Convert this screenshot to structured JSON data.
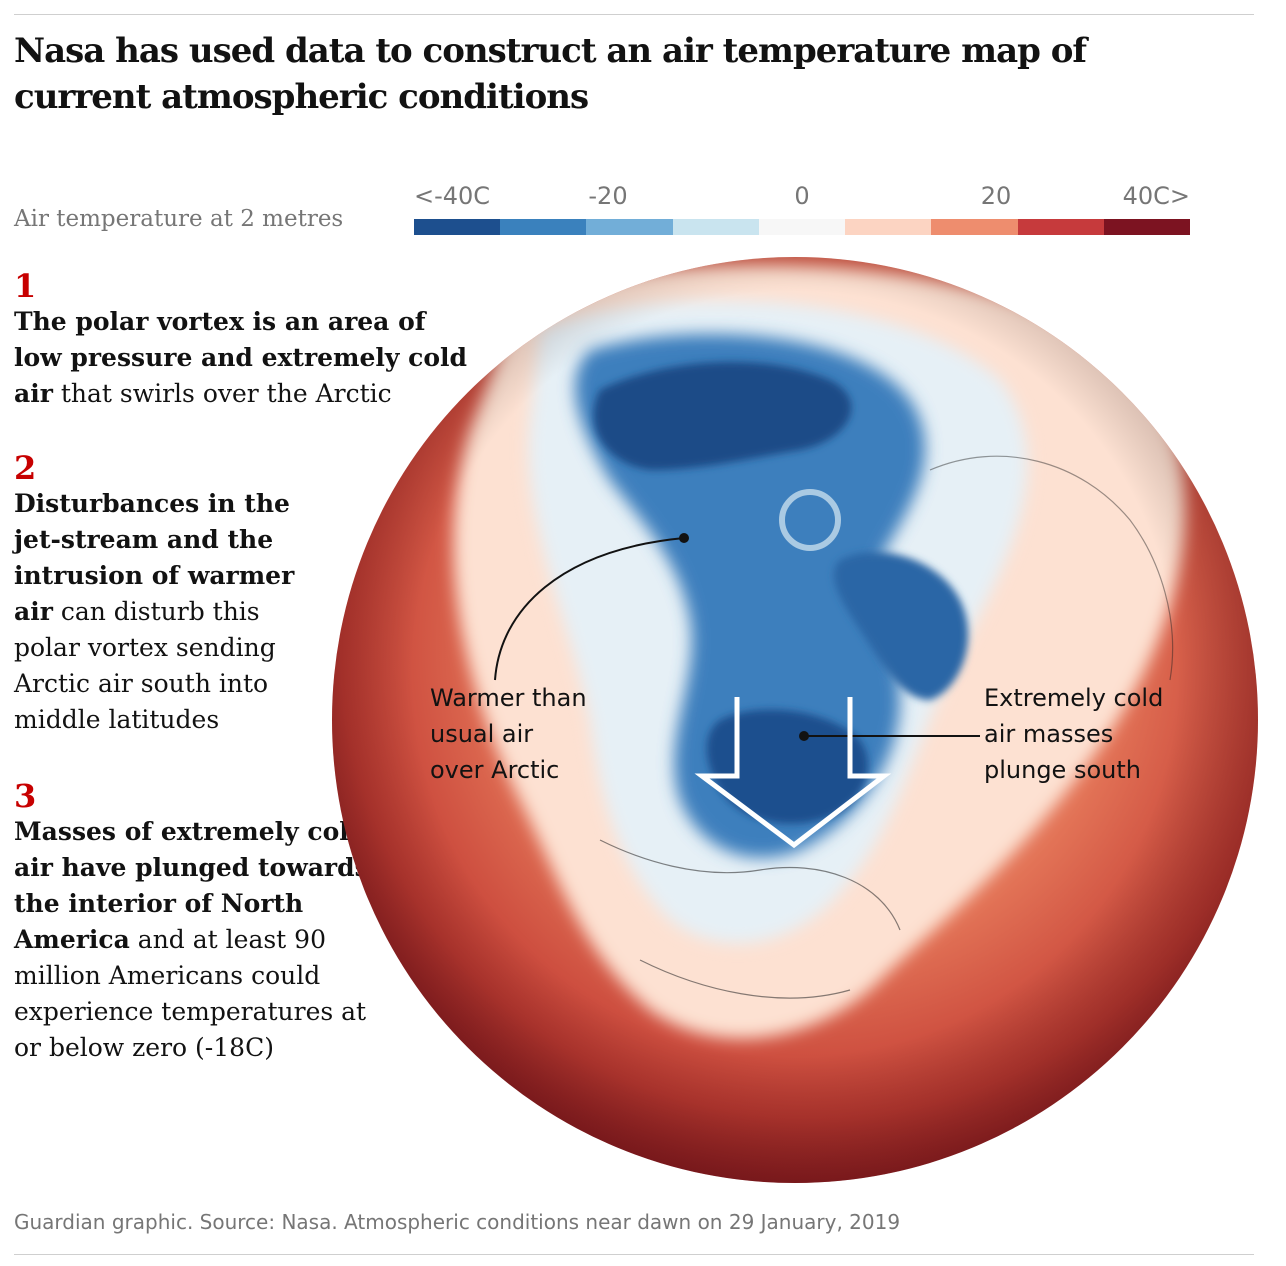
{
  "title": "Nasa has used data to construct an air temperature map of current atmospheric conditions",
  "legend": {
    "title": "Air temperature at 2 metres",
    "ticks": [
      {
        "label": "<-40C",
        "value": -40
      },
      {
        "label": "-20",
        "value": -20
      },
      {
        "label": "0",
        "value": 0
      },
      {
        "label": "20",
        "value": 20
      },
      {
        "label": "40C>",
        "value": 40
      }
    ],
    "colors": [
      "#1d4f8e",
      "#3a81bd",
      "#72aed8",
      "#c9e4ef",
      "#f7f7f7",
      "#fcd4c2",
      "#ee8d6e",
      "#c63a3c",
      "#7c1321"
    ]
  },
  "notes": [
    {
      "number": "1",
      "bold": "The polar vortex is an area of low pressure and extremely cold air",
      "rest": " that swirls over the Arctic"
    },
    {
      "number": "2",
      "bold": "Disturbances in the jet-stream and the intrusion of warmer air",
      "rest": " can disturb this polar vortex sending Arctic air south into middle latitudes"
    },
    {
      "number": "3",
      "bold": "Masses of extremely cold air have plunged towards the interior of North America",
      "rest": " and at least 90 million Americans could experience temperatures at or below zero (-18C)"
    }
  ],
  "annotations": {
    "warm": [
      "Warmer than",
      "usual air",
      "over Arctic"
    ],
    "cold": [
      "Extremely cold",
      "air masses",
      "plunge south"
    ]
  },
  "footer": "Guardian graphic. Source: Nasa. Atmospheric conditions near dawn on 29 January, 2019",
  "map_colors": {
    "hot": "#b8272e",
    "warm": "#f0a286",
    "cold": "#2c6aa8",
    "very_cold": "#173f78",
    "pale": "#eef4f8"
  }
}
